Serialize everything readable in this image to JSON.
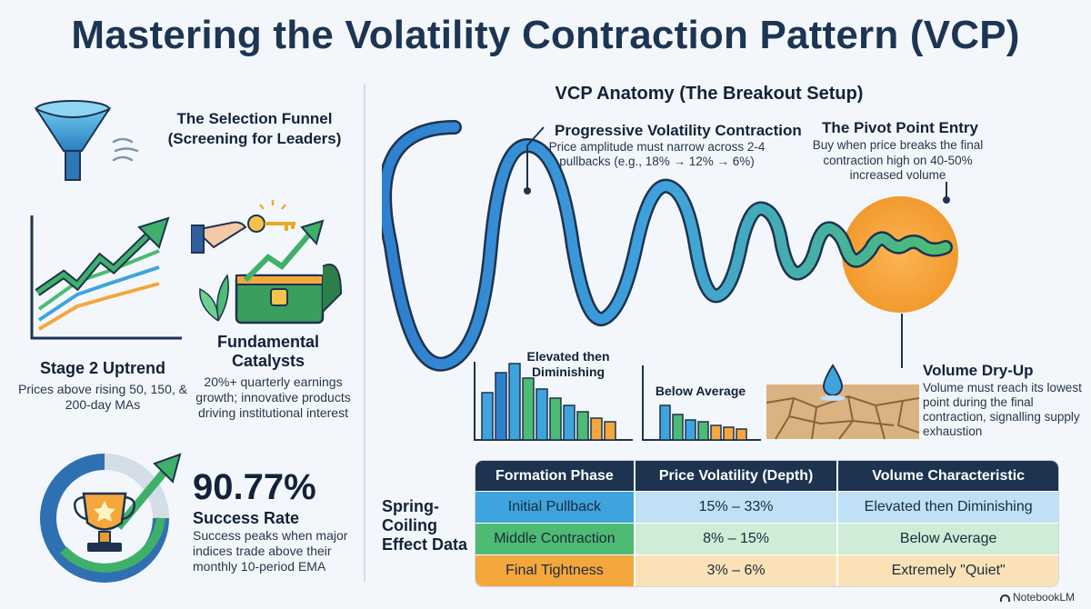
{
  "title": "Mastering the Volatility Contraction Pattern (VCP)",
  "left": {
    "funnel": {
      "title": "The Selection Funnel (Screening for Leaders)",
      "icon": "funnel-icon"
    },
    "uptrend": {
      "title": "Stage 2 Uptrend",
      "desc": "Prices above rising 50, 150, & 200-day MAs",
      "icon": "uptrend-chart-icon"
    },
    "catalysts": {
      "title": "Fundamental Catalysts",
      "desc": "20%+ quarterly earnings growth; innovative products driving institutional interest",
      "icon": "key-treasure-chest-icon"
    },
    "success": {
      "value": "90.77%",
      "label": "Success Rate",
      "desc": "Success peaks when major indices trade above their monthly 10-period EMA",
      "icon": "trophy-icon"
    }
  },
  "anatomy": {
    "title": "VCP Anatomy (The Breakout Setup)",
    "progressive": {
      "title": "Progressive Volatility Contraction",
      "desc": "Price amplitude must narrow across 2-4 pullbacks (e.g., 18% → 12% → 6%)"
    },
    "pivot": {
      "title": "The Pivot Point Entry",
      "desc": "Buy when price breaks the final contraction high on 40-50% increased volume"
    },
    "dryup": {
      "title": "Volume Dry-Up",
      "desc": "Volume must reach its lowest point during the final contraction, signalling supply exhaustion",
      "icon": "water-drop-cracked-earth-icon"
    },
    "volume_labels": {
      "elevated": "Elevated then Diminishing",
      "below": "Below Average"
    },
    "colors": {
      "blue": "#3fa3dd",
      "green": "#4dbb73",
      "orange": "#f4a73c",
      "navy": "#1d3350"
    }
  },
  "spring_label": "Spring-Coiling Effect Data",
  "table": {
    "headers": [
      "Formation Phase",
      "Price Volatility (Depth)",
      "Volume Characteristic"
    ],
    "rows": [
      [
        "Initial Pullback",
        "15% – 33%",
        "Elevated then Diminishing"
      ],
      [
        "Middle Contraction",
        "8% – 15%",
        "Below Average"
      ],
      [
        "Final Tightness",
        "3% – 6%",
        "Extremely \"Quiet\""
      ]
    ]
  },
  "brand": "NotebookLM"
}
